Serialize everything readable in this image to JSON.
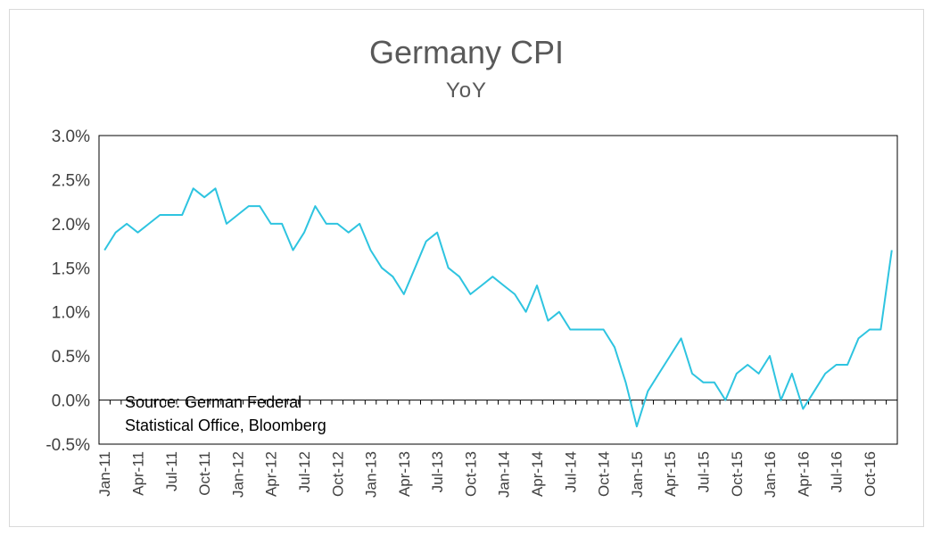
{
  "chart_data": {
    "type": "line",
    "title": "Germany CPI",
    "subtitle": "YoY",
    "xlabel": "",
    "ylabel": "",
    "ylim": [
      -0.5,
      3.0
    ],
    "y_tick_labels": [
      "3.0%",
      "2.5%",
      "2.0%",
      "1.5%",
      "1.0%",
      "0.5%",
      "0.0%",
      "-0.5%"
    ],
    "y_tick_values": [
      3.0,
      2.5,
      2.0,
      1.5,
      1.0,
      0.5,
      0.0,
      -0.5
    ],
    "x_tick_labels": [
      "Jan-11",
      "Apr-11",
      "Jul-11",
      "Oct-11",
      "Jan-12",
      "Apr-12",
      "Jul-12",
      "Oct-12",
      "Jan-13",
      "Apr-13",
      "Jul-13",
      "Oct-13",
      "Jan-14",
      "Apr-14",
      "Jul-14",
      "Oct-14",
      "Jan-15",
      "Apr-15",
      "Jul-15",
      "Oct-15",
      "Jan-16",
      "Apr-16",
      "Jul-16",
      "Oct-16"
    ],
    "grid": false,
    "line_color": "#2ec4e0",
    "annotation": [
      "Source: German Federal",
      "Statistical Office, Bloomberg"
    ],
    "series": [
      {
        "x": [
          "Jan-11",
          "Feb-11",
          "Mar-11",
          "Apr-11",
          "May-11",
          "Jun-11",
          "Jul-11",
          "Aug-11",
          "Sep-11",
          "Oct-11",
          "Nov-11",
          "Dec-11",
          "Jan-12",
          "Feb-12",
          "Mar-12",
          "Apr-12",
          "May-12",
          "Jun-12",
          "Jul-12",
          "Aug-12",
          "Sep-12",
          "Oct-12",
          "Nov-12",
          "Dec-12",
          "Jan-13",
          "Feb-13",
          "Mar-13",
          "Apr-13",
          "May-13",
          "Jun-13",
          "Jul-13",
          "Aug-13",
          "Sep-13",
          "Oct-13",
          "Nov-13",
          "Dec-13",
          "Jan-14",
          "Feb-14",
          "Mar-14",
          "Apr-14",
          "May-14",
          "Jun-14",
          "Jul-14",
          "Aug-14",
          "Sep-14",
          "Oct-14",
          "Nov-14",
          "Dec-14",
          "Jan-15",
          "Feb-15",
          "Mar-15",
          "Apr-15",
          "May-15",
          "Jun-15",
          "Jul-15",
          "Aug-15",
          "Sep-15",
          "Oct-15",
          "Nov-15",
          "Dec-15",
          "Jan-16",
          "Feb-16",
          "Mar-16",
          "Apr-16",
          "May-16",
          "Jun-16",
          "Jul-16",
          "Aug-16",
          "Sep-16",
          "Oct-16",
          "Nov-16",
          "Dec-16"
        ],
        "values": [
          1.7,
          1.9,
          2.0,
          1.9,
          2.0,
          2.1,
          2.1,
          2.1,
          2.4,
          2.3,
          2.4,
          2.0,
          2.1,
          2.2,
          2.2,
          2.0,
          2.0,
          1.7,
          1.9,
          2.2,
          2.0,
          2.0,
          1.9,
          2.0,
          1.7,
          1.5,
          1.4,
          1.2,
          1.5,
          1.8,
          1.9,
          1.5,
          1.4,
          1.2,
          1.3,
          1.4,
          1.3,
          1.2,
          1.0,
          1.3,
          0.9,
          1.0,
          0.8,
          0.8,
          0.8,
          0.8,
          0.6,
          0.2,
          -0.3,
          0.1,
          0.3,
          0.5,
          0.7,
          0.3,
          0.2,
          0.2,
          0.0,
          0.3,
          0.4,
          0.3,
          0.5,
          0.0,
          0.3,
          -0.1,
          0.1,
          0.3,
          0.4,
          0.4,
          0.7,
          0.8,
          0.8,
          1.7
        ]
      }
    ]
  }
}
